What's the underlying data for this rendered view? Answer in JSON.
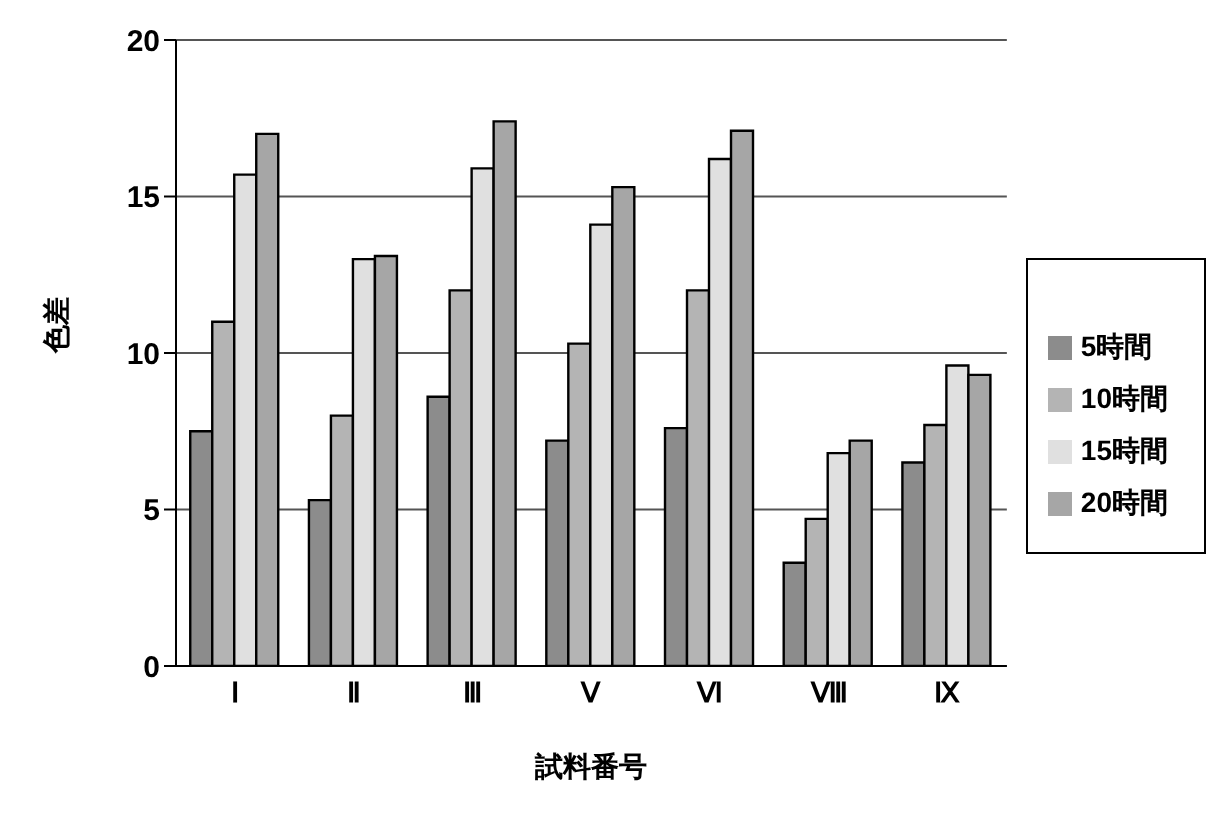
{
  "chart_data": {
    "type": "bar",
    "xlabel": "試料番号",
    "ylabel": "色差",
    "categories": [
      "Ⅰ",
      "Ⅱ",
      "Ⅲ",
      "Ⅴ",
      "Ⅵ",
      "Ⅷ",
      "Ⅸ"
    ],
    "series": [
      {
        "name": "5時間",
        "color": "#8c8c8c",
        "values": [
          7.5,
          5.3,
          8.6,
          7.2,
          7.6,
          3.3,
          6.5
        ]
      },
      {
        "name": "10時間",
        "color": "#b4b4b4",
        "values": [
          11.0,
          8.0,
          12.0,
          10.3,
          12.0,
          4.7,
          7.7
        ]
      },
      {
        "name": "15時間",
        "color": "#e0e0e0",
        "values": [
          15.7,
          13.0,
          15.9,
          14.1,
          16.2,
          6.8,
          9.6
        ]
      },
      {
        "name": "20時間",
        "color": "#a6a6a6",
        "values": [
          17.0,
          13.1,
          17.4,
          15.3,
          17.1,
          7.2,
          9.3
        ]
      }
    ],
    "ylim": [
      0,
      20
    ],
    "yticks": [
      0,
      5,
      10,
      15,
      20
    ],
    "grid": "y",
    "legend": "right"
  }
}
